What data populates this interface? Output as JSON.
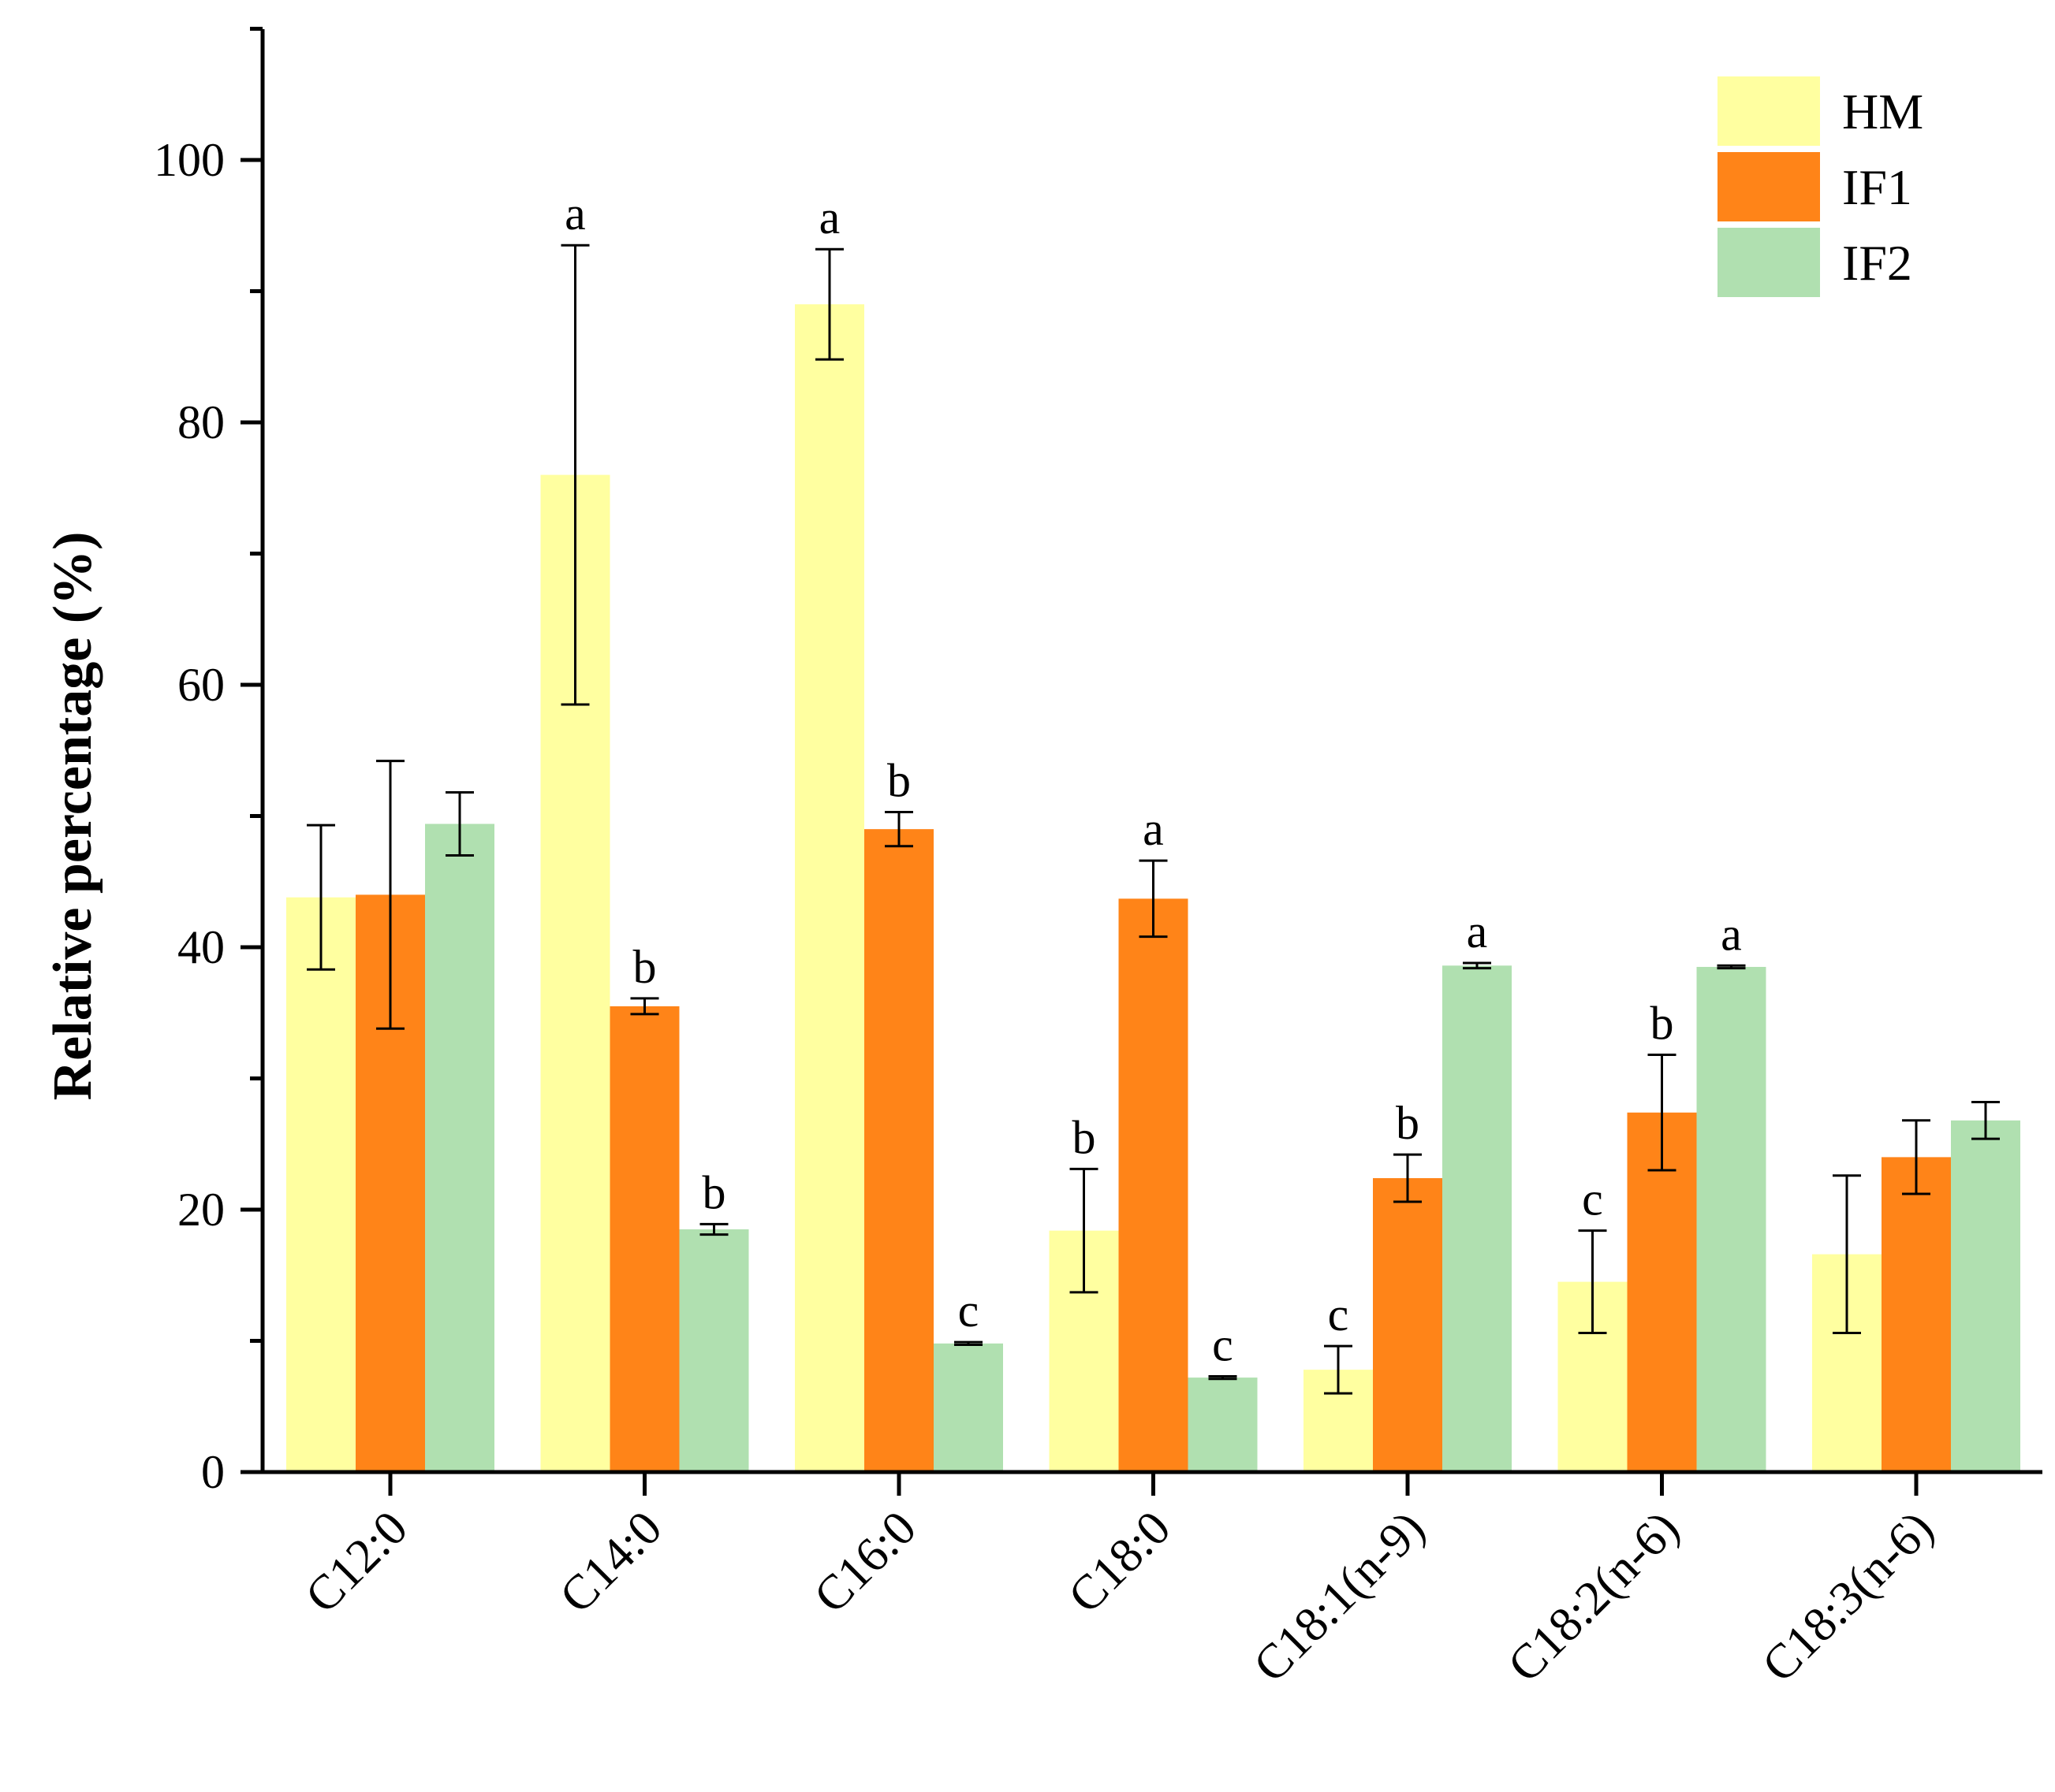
{
  "chart_data": {
    "type": "bar",
    "title": "",
    "xlabel": "",
    "ylabel": "Relative percentage (%)",
    "ylim": [
      0,
      110
    ],
    "yticks": [
      0,
      20,
      40,
      60,
      80,
      100
    ],
    "categories": [
      "C12:0",
      "C14:0",
      "C16:0",
      "C18:0",
      "C18:1(n-9)",
      "C18:2(n-6)",
      "C18:3(n-6)"
    ],
    "legend_position": "top-right",
    "series": [
      {
        "name": "HM",
        "color": "#FFFFA0",
        "values": [
          43.8,
          76.0,
          89.0,
          18.4,
          7.8,
          14.5,
          16.6
        ],
        "errors": [
          5.5,
          17.5,
          4.2,
          4.7,
          1.8,
          3.9,
          6.0
        ],
        "sig": [
          "",
          "a",
          "a",
          "b",
          "c",
          "c",
          ""
        ]
      },
      {
        "name": "IF1",
        "color": "#FF8418",
        "values": [
          44.0,
          35.5,
          49.0,
          43.7,
          22.4,
          27.4,
          24.0
        ],
        "errors": [
          10.2,
          0.6,
          1.3,
          2.9,
          1.8,
          4.4,
          2.8
        ],
        "sig": [
          "",
          "b",
          "b",
          "a",
          "b",
          "b",
          ""
        ]
      },
      {
        "name": "IF2",
        "color": "#B0E0B0",
        "values": [
          49.4,
          18.5,
          9.8,
          7.2,
          38.6,
          38.5,
          26.8
        ],
        "errors": [
          2.4,
          0.4,
          0.1,
          0.1,
          0.2,
          0.1,
          1.4
        ],
        "sig": [
          "",
          "b",
          "c",
          "c",
          "a",
          "a",
          ""
        ]
      }
    ]
  }
}
